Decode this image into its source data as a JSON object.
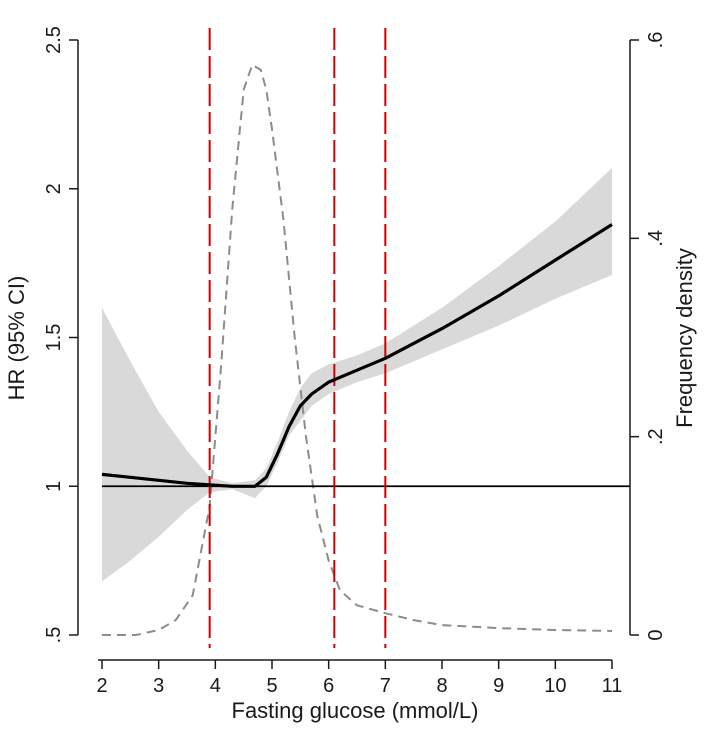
{
  "chart_data": {
    "type": "line",
    "xlabel": "Fasting glucose (mmol/L)",
    "ylabel_left": "HR (95% CI)",
    "ylabel_right": "Frequency density",
    "xlim": [
      2,
      11
    ],
    "ylim_left": [
      0.5,
      2.5
    ],
    "ylim_right": [
      0,
      0.6
    ],
    "x_ticks": [
      2,
      3,
      4,
      5,
      6,
      7,
      8,
      9,
      10,
      11
    ],
    "x_tick_labels": [
      "2",
      "3",
      "4",
      "5",
      "6",
      "7",
      "8",
      "9",
      "10",
      "11"
    ],
    "y_left_ticks": [
      0.5,
      1,
      1.5,
      2,
      2.5
    ],
    "y_left_tick_labels": [
      ".5",
      "1",
      "1.5",
      "2",
      "2.5"
    ],
    "y_right_ticks": [
      0,
      0.2,
      0.4,
      0.6
    ],
    "y_right_tick_labels": [
      "0",
      ".2",
      ".4",
      ".6"
    ],
    "reference_line_hr": 1,
    "cutoff_lines_x": [
      3.9,
      6.1,
      7.0
    ],
    "colors": {
      "hr_line": "#000000",
      "ci_band": "#d9d9d9",
      "density": "#8c8c8c",
      "cutoff": "#cc0000",
      "axis": "#1a1a1a"
    },
    "series": [
      {
        "name": "HR",
        "x": [
          2.0,
          2.5,
          3.0,
          3.5,
          3.9,
          4.3,
          4.7,
          4.9,
          5.1,
          5.3,
          5.5,
          5.7,
          6.0,
          6.5,
          7.0,
          8.0,
          9.0,
          10.0,
          11.0
        ],
        "y": [
          1.04,
          1.03,
          1.02,
          1.01,
          1.005,
          1.0,
          1.0,
          1.03,
          1.11,
          1.2,
          1.27,
          1.31,
          1.35,
          1.39,
          1.43,
          1.53,
          1.64,
          1.76,
          1.88
        ]
      },
      {
        "name": "95% CI lower",
        "x": [
          2.0,
          2.5,
          3.0,
          3.5,
          3.9,
          4.3,
          4.7,
          4.9,
          5.1,
          5.3,
          5.5,
          5.7,
          6.0,
          6.5,
          7.0,
          8.0,
          9.0,
          10.0,
          11.0
        ],
        "y": [
          0.68,
          0.75,
          0.83,
          0.92,
          0.98,
          0.99,
          0.96,
          1.0,
          1.08,
          1.17,
          1.22,
          1.27,
          1.31,
          1.35,
          1.38,
          1.46,
          1.54,
          1.63,
          1.71
        ]
      },
      {
        "name": "95% CI upper",
        "x": [
          2.0,
          2.5,
          3.0,
          3.5,
          3.9,
          4.3,
          4.7,
          4.9,
          5.1,
          5.3,
          5.5,
          5.7,
          6.0,
          6.5,
          7.0,
          8.0,
          9.0,
          10.0,
          11.0
        ],
        "y": [
          1.6,
          1.42,
          1.25,
          1.12,
          1.03,
          1.01,
          1.02,
          1.06,
          1.15,
          1.25,
          1.33,
          1.38,
          1.41,
          1.44,
          1.48,
          1.6,
          1.74,
          1.89,
          2.07
        ]
      },
      {
        "name": "Frequency density",
        "axis": "right",
        "x": [
          2.0,
          2.6,
          3.0,
          3.3,
          3.6,
          3.9,
          4.1,
          4.3,
          4.5,
          4.65,
          4.8,
          4.9,
          5.0,
          5.2,
          5.4,
          5.6,
          5.8,
          6.0,
          6.2,
          6.5,
          7.0,
          7.5,
          8.0,
          9.0,
          10.0,
          11.0
        ],
        "y": [
          0.0,
          0.0,
          0.005,
          0.015,
          0.04,
          0.13,
          0.27,
          0.43,
          0.55,
          0.575,
          0.57,
          0.55,
          0.51,
          0.42,
          0.3,
          0.2,
          0.12,
          0.075,
          0.045,
          0.03,
          0.022,
          0.015,
          0.01,
          0.007,
          0.005,
          0.004
        ]
      }
    ]
  }
}
